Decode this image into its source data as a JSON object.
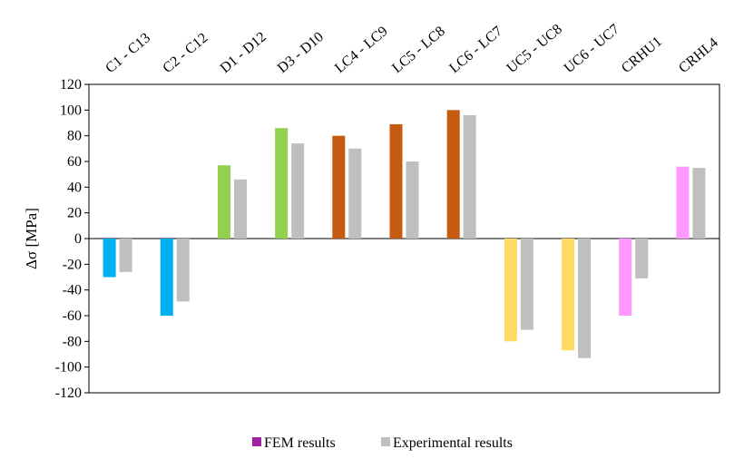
{
  "chart_data": {
    "type": "bar",
    "title": "",
    "xlabel": "",
    "ylabel": "Δσ [MPa]",
    "ylim": [
      -120,
      120
    ],
    "yticks": [
      120,
      100,
      80,
      60,
      40,
      20,
      0,
      -20,
      -40,
      -60,
      -80,
      -100,
      -120
    ],
    "grid": false,
    "legend_position": "bottom",
    "categories": [
      "C1 - C13",
      "C2 - C12",
      "D1 - D12",
      "D3 - D10",
      "LC4 - LC9",
      "LC5 - LC8",
      "LC6 - LC7",
      "UC5 - UC8",
      "UC6 - UC7",
      "CRHU1",
      "CRHL4"
    ],
    "category_colors": [
      "#00b0f0",
      "#00b0f0",
      "#92d050",
      "#92d050",
      "#c55a11",
      "#c55a11",
      "#c55a11",
      "#ffd966",
      "#ffd966",
      "#ff99ff",
      "#ff99ff"
    ],
    "series": [
      {
        "name": "FEM results",
        "legend_color": "#a020a0",
        "values": [
          -30,
          -60,
          57,
          86,
          80,
          89,
          100,
          -80,
          -87,
          -60,
          56
        ]
      },
      {
        "name": "Experimental results",
        "color": "#bfbfbf",
        "values": [
          -26,
          -49,
          46,
          74,
          70,
          60,
          96,
          -71,
          -93,
          -31,
          55
        ]
      }
    ]
  }
}
